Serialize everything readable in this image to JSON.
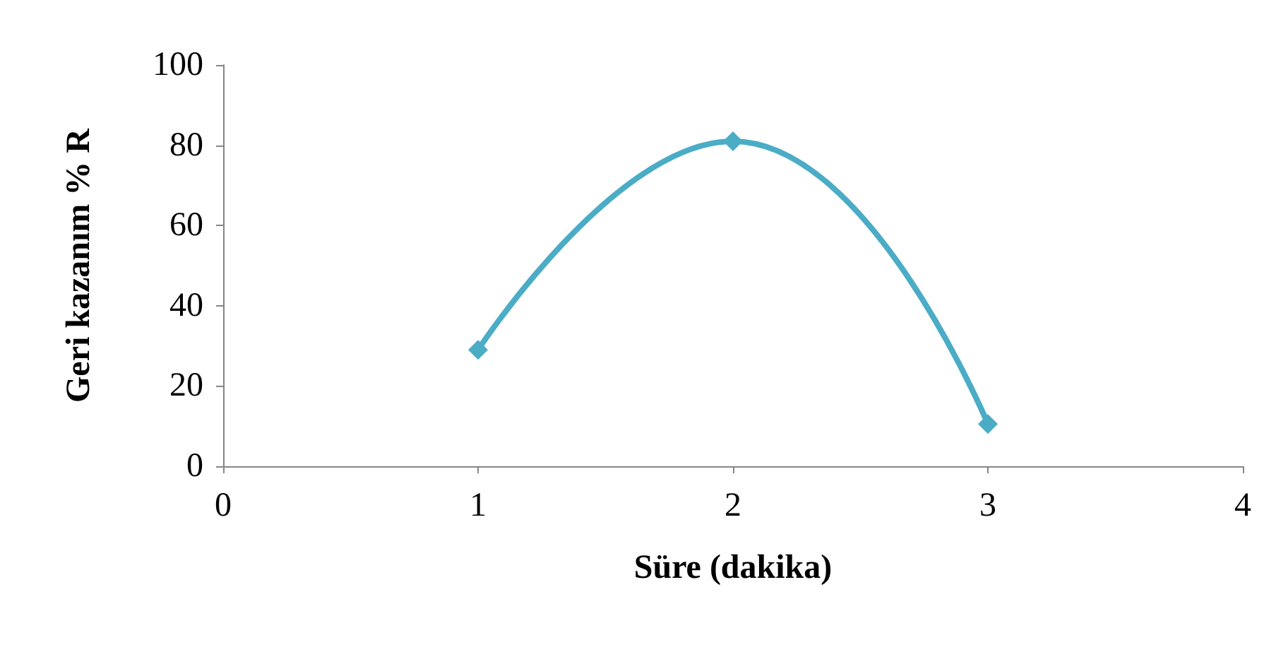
{
  "chart_data": {
    "type": "line",
    "xlabel": "Süre (dakika)",
    "ylabel": "Geri kazanım % R",
    "x": [
      1,
      2,
      3
    ],
    "series": [
      {
        "color": "#4bacc6",
        "values": [
          29,
          81,
          10.5
        ]
      }
    ],
    "xlim": [
      0,
      4
    ],
    "xticks": [
      0,
      1,
      2,
      3,
      4
    ],
    "ylim": [
      0,
      100
    ],
    "yticks": [
      0,
      20,
      40,
      60,
      80,
      100
    ],
    "grid": false,
    "marker": "diamond",
    "line_style": "solid"
  }
}
